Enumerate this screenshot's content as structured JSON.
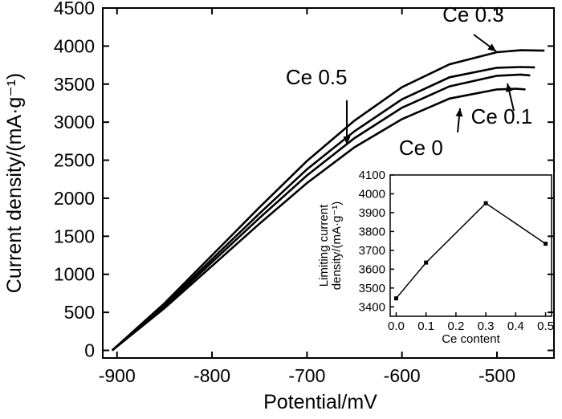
{
  "chart_data": [
    {
      "type": "line",
      "title": "",
      "xlabel": "Potential/mV",
      "ylabel": "Current density/(mA·g⁻¹)",
      "xlim": [
        -915,
        -440
      ],
      "ylim": [
        -100,
        4500
      ],
      "xticks": [
        -900,
        -800,
        -700,
        -600,
        -500
      ],
      "yticks": [
        0,
        500,
        1000,
        1500,
        2000,
        2500,
        3000,
        3500,
        4000,
        4500
      ],
      "series": [
        {
          "name": "Ce 0.3",
          "x": [
            -905,
            -850,
            -800,
            -750,
            -700,
            -650,
            -600,
            -550,
            -500,
            -475,
            -450
          ],
          "y": [
            0,
            620,
            1250,
            1880,
            2490,
            3020,
            3460,
            3760,
            3920,
            3945,
            3940
          ]
        },
        {
          "name": "Ce 0.5",
          "x": [
            -905,
            -850,
            -800,
            -750,
            -700,
            -650,
            -600,
            -550,
            -500,
            -475,
            -460
          ],
          "y": [
            0,
            595,
            1200,
            1800,
            2380,
            2880,
            3300,
            3590,
            3715,
            3725,
            3720
          ]
        },
        {
          "name": "Ce 0.1",
          "x": [
            -905,
            -850,
            -800,
            -750,
            -700,
            -650,
            -600,
            -550,
            -500,
            -475,
            -465
          ],
          "y": [
            0,
            575,
            1160,
            1740,
            2300,
            2790,
            3190,
            3470,
            3610,
            3625,
            3615
          ]
        },
        {
          "name": "Ce 0",
          "x": [
            -905,
            -850,
            -800,
            -750,
            -700,
            -650,
            -600,
            -550,
            -500,
            -480,
            -470
          ],
          "y": [
            0,
            555,
            1110,
            1665,
            2200,
            2670,
            3040,
            3310,
            3430,
            3440,
            3430
          ]
        }
      ],
      "annotations": [
        {
          "text": "Ce 0.3",
          "x": -525,
          "y": 4320
        },
        {
          "text": "Ce 0.5",
          "x": -690,
          "y": 3500
        },
        {
          "text": "Ce 0.1",
          "x": -495,
          "y": 2980
        },
        {
          "text": "Ce 0",
          "x": -580,
          "y": 2570
        }
      ]
    },
    {
      "type": "line",
      "title": "",
      "xlabel": "Ce content",
      "ylabel_line1": "Limiting current",
      "ylabel_line2": "density/(mA·g⁻¹)",
      "xlim": [
        -0.02,
        0.52
      ],
      "ylim": [
        3350,
        4100
      ],
      "xticks": [
        "0.0",
        "0.1",
        "0.2",
        "0.3",
        "0.4",
        "0.5"
      ],
      "yticks": [
        "3400",
        "3500",
        "3600",
        "3700",
        "3800",
        "3900",
        "4000",
        "4100"
      ],
      "x": [
        0.0,
        0.1,
        0.3,
        0.5
      ],
      "y": [
        3445,
        3635,
        3950,
        3735
      ]
    }
  ]
}
